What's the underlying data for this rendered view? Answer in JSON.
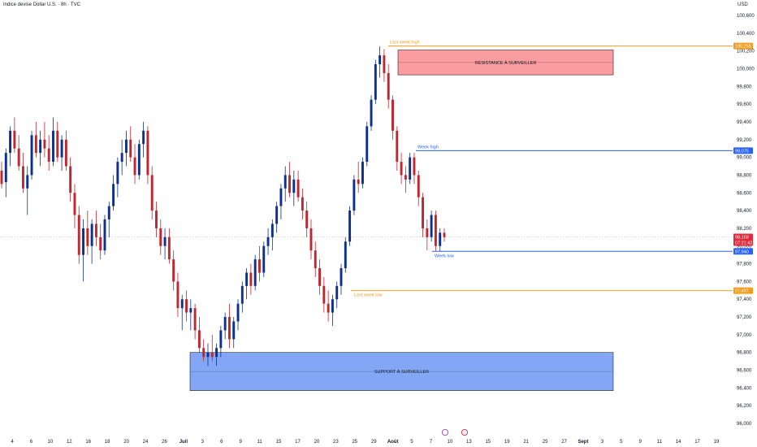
{
  "chart_data": {
    "type": "candlestick",
    "title": "Indice devise Dollar U.S. · 8h · TVC",
    "unit": "USD",
    "ylim": [
      96.0,
      100.6
    ],
    "yticks": [
      "100,600",
      "100,400",
      "100,200",
      "100,000",
      "99,800",
      "99,600",
      "99,400",
      "99,200",
      "99,000",
      "98,800",
      "98,600",
      "98,400",
      "98,200",
      "98,000",
      "97,800",
      "97,600",
      "97,400",
      "97,200",
      "97,000",
      "96,800",
      "96,600",
      "96,400",
      "96,200",
      "96,000"
    ],
    "xticks": [
      "4",
      "6",
      "10",
      "12",
      "16",
      "18",
      "20",
      "24",
      "26",
      "Juil",
      "3",
      "6",
      "9",
      "11",
      "15",
      "17",
      "20",
      "23",
      "25",
      "29",
      "Août",
      "5",
      "7",
      "10",
      "13",
      "15",
      "19",
      "21",
      "25",
      "27",
      "Sept",
      "3",
      "5",
      "9",
      "11",
      "14",
      "17",
      "19"
    ],
    "zones": [
      {
        "label": "RÉSISTANCE À SURVEILLER",
        "top": 100.21,
        "bottom": 99.93,
        "color": "#f77c80"
      },
      {
        "label": "SUPPORT À SURVEILLER",
        "top": 96.8,
        "bottom": 96.37,
        "color": "#5b8af1"
      }
    ],
    "levels": [
      {
        "label": "Last week high",
        "value": 100.255,
        "price_label": "100,255",
        "color": "#f59c1a"
      },
      {
        "label": "Week high",
        "value": 99.075,
        "price_label": "99,075",
        "color": "#2962ff"
      },
      {
        "label": "Week low",
        "value": 97.94,
        "price_label": "97,940",
        "color": "#2962ff"
      },
      {
        "label": "Last week low",
        "value": 97.497,
        "price_label": "97,497",
        "color": "#f59c1a"
      }
    ],
    "last_price": {
      "value": 98.103,
      "price_label": "98,103",
      "countdown": "07:21:42",
      "color": "#e0293a"
    },
    "colors": {
      "up": "#0d2f8f",
      "down": "#c0262f"
    },
    "candles": [
      [
        98.85,
        98.95,
        98.65,
        98.7
      ],
      [
        98.72,
        99.1,
        98.55,
        99.05
      ],
      [
        99.05,
        99.35,
        98.9,
        99.3
      ],
      [
        99.3,
        99.45,
        99.05,
        99.1
      ],
      [
        99.1,
        99.25,
        98.85,
        98.9
      ],
      [
        98.9,
        99.05,
        98.6,
        98.65
      ],
      [
        98.65,
        98.9,
        98.35,
        98.8
      ],
      [
        98.8,
        99.3,
        98.75,
        99.25
      ],
      [
        99.25,
        99.4,
        99.0,
        99.05
      ],
      [
        99.05,
        99.3,
        98.9,
        99.2
      ],
      [
        99.2,
        99.4,
        99.0,
        99.1
      ],
      [
        99.1,
        99.25,
        98.85,
        98.95
      ],
      [
        98.95,
        99.45,
        98.9,
        99.3
      ],
      [
        99.3,
        99.4,
        98.95,
        99.0
      ],
      [
        99.0,
        99.25,
        98.85,
        99.2
      ],
      [
        99.2,
        99.3,
        98.85,
        98.9
      ],
      [
        98.9,
        99.0,
        98.5,
        98.6
      ],
      [
        98.6,
        98.7,
        98.2,
        98.35
      ],
      [
        98.35,
        98.45,
        97.8,
        97.9
      ],
      [
        97.9,
        98.3,
        97.6,
        98.2
      ],
      [
        98.2,
        98.4,
        97.9,
        98.0
      ],
      [
        98.0,
        98.3,
        97.8,
        98.25
      ],
      [
        98.25,
        98.4,
        98.0,
        98.1
      ],
      [
        98.1,
        98.25,
        97.85,
        97.95
      ],
      [
        97.95,
        98.35,
        97.9,
        98.3
      ],
      [
        98.3,
        98.5,
        98.1,
        98.45
      ],
      [
        98.45,
        98.8,
        98.4,
        98.7
      ],
      [
        98.7,
        99.0,
        98.55,
        98.95
      ],
      [
        98.95,
        99.2,
        98.8,
        99.05
      ],
      [
        99.05,
        99.3,
        98.9,
        99.2
      ],
      [
        99.2,
        99.35,
        98.95,
        99.0
      ],
      [
        99.0,
        99.15,
        98.7,
        98.8
      ],
      [
        98.8,
        99.2,
        98.75,
        99.15
      ],
      [
        99.15,
        99.4,
        99.0,
        99.3
      ],
      [
        99.3,
        99.35,
        98.7,
        98.8
      ],
      [
        98.8,
        98.9,
        98.3,
        98.4
      ],
      [
        98.4,
        98.5,
        98.1,
        98.2
      ],
      [
        98.2,
        98.3,
        97.9,
        98.0
      ],
      [
        98.0,
        98.2,
        97.85,
        98.1
      ],
      [
        98.1,
        98.2,
        97.8,
        97.85
      ],
      [
        97.85,
        97.95,
        97.5,
        97.6
      ],
      [
        97.6,
        97.7,
        97.2,
        97.3
      ],
      [
        97.3,
        97.45,
        97.05,
        97.4
      ],
      [
        97.4,
        97.5,
        97.15,
        97.25
      ],
      [
        97.25,
        97.4,
        97.05,
        97.3
      ],
      [
        97.3,
        97.35,
        96.95,
        97.05
      ],
      [
        97.05,
        97.2,
        96.8,
        96.85
      ],
      [
        96.85,
        96.95,
        96.7,
        96.75
      ],
      [
        96.75,
        96.9,
        96.65,
        96.8
      ],
      [
        96.8,
        97.0,
        96.7,
        96.75
      ],
      [
        96.75,
        96.9,
        96.65,
        96.85
      ],
      [
        96.85,
        97.1,
        96.75,
        97.05
      ],
      [
        97.05,
        97.25,
        96.95,
        97.2
      ],
      [
        97.2,
        97.35,
        96.85,
        96.95
      ],
      [
        96.95,
        97.2,
        96.85,
        97.15
      ],
      [
        97.15,
        97.4,
        97.05,
        97.35
      ],
      [
        97.35,
        97.6,
        97.25,
        97.55
      ],
      [
        97.55,
        97.75,
        97.4,
        97.7
      ],
      [
        97.7,
        97.8,
        97.45,
        97.55
      ],
      [
        97.55,
        97.9,
        97.5,
        97.85
      ],
      [
        97.85,
        98.0,
        97.6,
        97.7
      ],
      [
        97.7,
        98.05,
        97.65,
        98.0
      ],
      [
        98.0,
        98.2,
        97.9,
        98.1
      ],
      [
        98.1,
        98.3,
        97.95,
        98.25
      ],
      [
        98.25,
        98.5,
        98.15,
        98.45
      ],
      [
        98.45,
        98.7,
        98.3,
        98.65
      ],
      [
        98.65,
        98.9,
        98.5,
        98.8
      ],
      [
        98.8,
        98.95,
        98.55,
        98.6
      ],
      [
        98.6,
        98.85,
        98.45,
        98.75
      ],
      [
        98.75,
        98.85,
        98.5,
        98.55
      ],
      [
        98.55,
        98.65,
        98.3,
        98.4
      ],
      [
        98.4,
        98.5,
        98.1,
        98.2
      ],
      [
        98.2,
        98.3,
        97.85,
        97.95
      ],
      [
        97.95,
        98.05,
        97.65,
        97.75
      ],
      [
        97.75,
        97.85,
        97.45,
        97.55
      ],
      [
        97.55,
        97.65,
        97.25,
        97.35
      ],
      [
        97.35,
        97.5,
        97.15,
        97.25
      ],
      [
        97.25,
        97.45,
        97.1,
        97.4
      ],
      [
        97.4,
        97.6,
        97.3,
        97.55
      ],
      [
        97.55,
        97.8,
        97.45,
        97.75
      ],
      [
        97.75,
        98.1,
        97.7,
        98.05
      ],
      [
        98.05,
        98.45,
        98.0,
        98.4
      ],
      [
        98.4,
        98.8,
        98.35,
        98.75
      ],
      [
        98.75,
        98.95,
        98.6,
        98.7
      ],
      [
        98.7,
        99.0,
        98.65,
        98.95
      ],
      [
        98.95,
        99.4,
        98.9,
        99.35
      ],
      [
        99.35,
        99.7,
        99.3,
        99.65
      ],
      [
        99.65,
        100.1,
        99.6,
        100.05
      ],
      [
        100.05,
        100.25,
        99.9,
        100.15
      ],
      [
        100.15,
        100.22,
        99.85,
        99.95
      ],
      [
        99.95,
        100.05,
        99.55,
        99.65
      ],
      [
        99.65,
        99.7,
        99.2,
        99.3
      ],
      [
        99.3,
        99.35,
        98.85,
        98.95
      ],
      [
        98.95,
        99.05,
        98.7,
        98.8
      ],
      [
        98.8,
        98.9,
        98.6,
        98.75
      ],
      [
        98.75,
        99.05,
        98.7,
        99.0
      ],
      [
        99.0,
        99.05,
        98.7,
        98.8
      ],
      [
        98.8,
        98.85,
        98.45,
        98.55
      ],
      [
        98.55,
        98.6,
        98.1,
        98.2
      ],
      [
        98.2,
        98.3,
        97.95,
        98.1
      ],
      [
        98.1,
        98.4,
        98.05,
        98.35
      ],
      [
        98.35,
        98.4,
        97.94,
        98.0
      ],
      [
        98.0,
        98.2,
        97.94,
        98.15
      ],
      [
        98.15,
        98.2,
        98.05,
        98.1
      ]
    ]
  }
}
